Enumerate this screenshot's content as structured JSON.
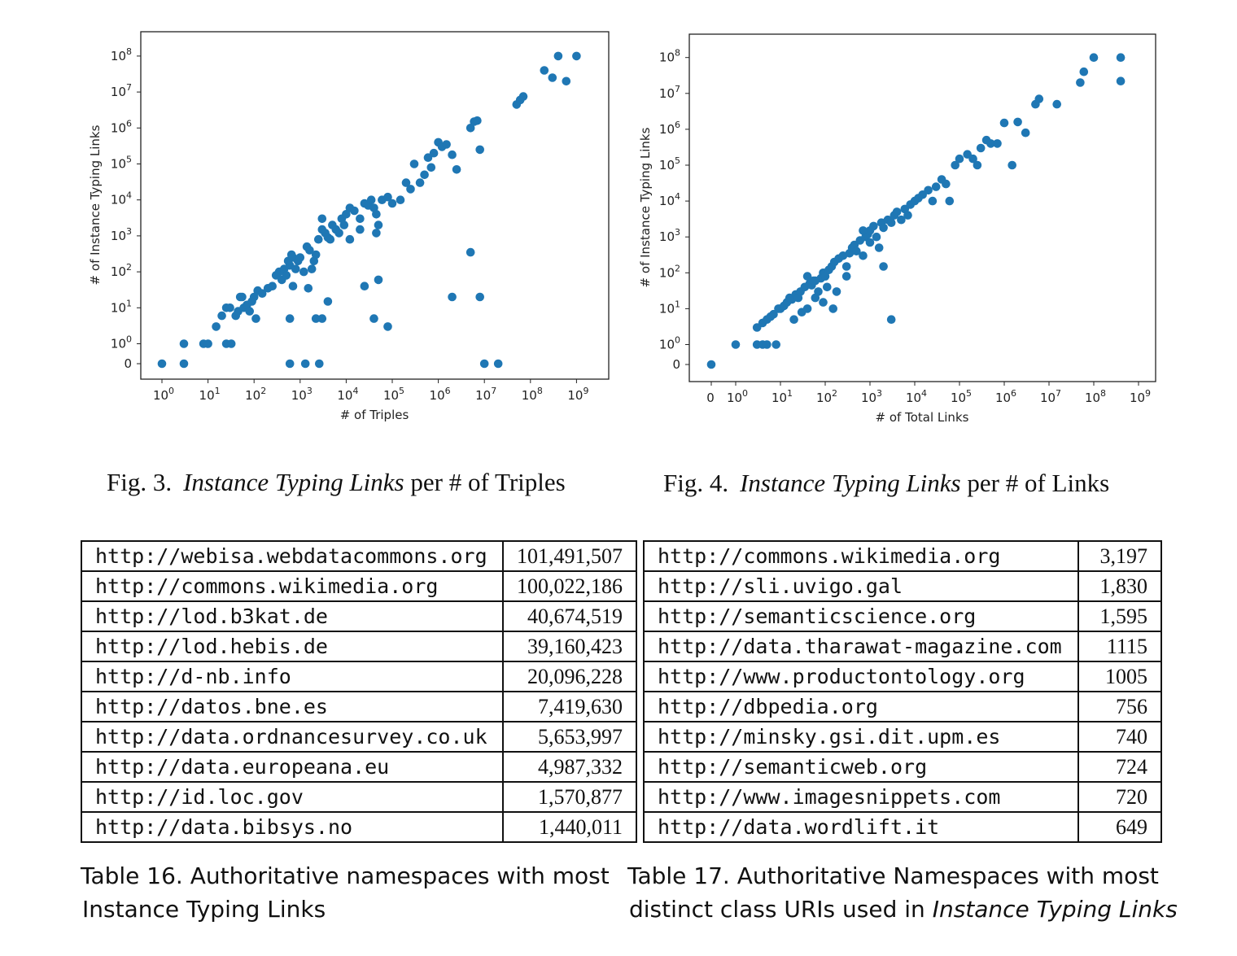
{
  "figures": [
    {
      "number": "Fig. 3.",
      "title_italic": "Instance Typing Links",
      "title_rest": "per # of Triples"
    },
    {
      "number": "Fig. 4.",
      "title_italic": "Instance Typing Links",
      "title_rest": "per # of Links"
    }
  ],
  "chart_data": [
    {
      "type": "scatter",
      "xlabel": "# of Triples",
      "ylabel": "# of Instance Typing Links",
      "xscale": "symlog",
      "yscale": "symlog",
      "x_ticks": [
        "10^0",
        "10^1",
        "10^2",
        "10^3",
        "10^4",
        "10^5",
        "10^6",
        "10^7",
        "10^8",
        "10^9"
      ],
      "y_ticks": [
        "0",
        "10^0",
        "10^1",
        "10^2",
        "10^3",
        "10^4",
        "10^5",
        "10^6",
        "10^7",
        "10^8"
      ],
      "color": "#1f77b4",
      "points": [
        [
          1,
          0
        ],
        [
          3,
          0
        ],
        [
          3,
          1
        ],
        [
          8,
          1
        ],
        [
          10,
          1
        ],
        [
          25,
          1
        ],
        [
          32,
          1
        ],
        [
          600,
          0
        ],
        [
          1300,
          0
        ],
        [
          2600,
          0
        ],
        [
          10000000,
          0
        ],
        [
          20000000,
          0
        ],
        [
          15,
          3
        ],
        [
          20,
          6
        ],
        [
          25,
          10
        ],
        [
          30,
          10
        ],
        [
          40,
          6
        ],
        [
          45,
          8
        ],
        [
          50,
          20
        ],
        [
          55,
          20
        ],
        [
          60,
          10
        ],
        [
          70,
          12
        ],
        [
          80,
          8
        ],
        [
          90,
          15
        ],
        [
          100,
          20
        ],
        [
          110,
          5
        ],
        [
          120,
          30
        ],
        [
          150,
          25
        ],
        [
          200,
          35
        ],
        [
          250,
          40
        ],
        [
          300,
          80
        ],
        [
          350,
          100
        ],
        [
          400,
          60
        ],
        [
          450,
          120
        ],
        [
          500,
          80
        ],
        [
          550,
          200
        ],
        [
          600,
          150
        ],
        [
          650,
          300
        ],
        [
          700,
          250
        ],
        [
          800,
          120
        ],
        [
          900,
          200
        ],
        [
          1000,
          250
        ],
        [
          1200,
          100
        ],
        [
          1400,
          500
        ],
        [
          1600,
          400
        ],
        [
          1800,
          120
        ],
        [
          2000,
          200
        ],
        [
          2200,
          300
        ],
        [
          2500,
          800
        ],
        [
          3000,
          1500
        ],
        [
          3500,
          1200
        ],
        [
          4000,
          900
        ],
        [
          4500,
          800
        ],
        [
          5000,
          2000
        ],
        [
          6000,
          1500
        ],
        [
          7000,
          1200
        ],
        [
          8000,
          3000
        ],
        [
          9000,
          2000
        ],
        [
          10000,
          4000
        ],
        [
          12000,
          6000
        ],
        [
          15000,
          5000
        ],
        [
          20000,
          3000
        ],
        [
          25000,
          8000
        ],
        [
          30000,
          7000
        ],
        [
          35000,
          10000
        ],
        [
          40000,
          6000
        ],
        [
          45000,
          4000
        ],
        [
          50000,
          2000
        ],
        [
          60000,
          10000
        ],
        [
          80000,
          12000
        ],
        [
          100000,
          8000
        ],
        [
          150000,
          10000
        ],
        [
          200000,
          30000
        ],
        [
          250000,
          20000
        ],
        [
          300000,
          100000
        ],
        [
          400000,
          30000
        ],
        [
          500000,
          50000
        ],
        [
          600000,
          150000
        ],
        [
          700000,
          80000
        ],
        [
          800000,
          200000
        ],
        [
          1000000,
          400000
        ],
        [
          1200000,
          300000
        ],
        [
          1500000,
          350000
        ],
        [
          2000000,
          180000
        ],
        [
          2500000,
          70000
        ],
        [
          5000000,
          1000000
        ],
        [
          6000000,
          1500000
        ],
        [
          7000000,
          1600000
        ],
        [
          8000000,
          250000
        ],
        [
          50000000,
          4500000
        ],
        [
          60000000,
          6000000
        ],
        [
          70000000,
          7500000
        ],
        [
          200000000,
          40000000
        ],
        [
          300000000,
          25000000
        ],
        [
          400000000,
          100000000
        ],
        [
          600000000,
          20000000
        ],
        [
          1000000000,
          100000000
        ],
        [
          600,
          5
        ],
        [
          700,
          40
        ],
        [
          1500,
          35
        ],
        [
          2200,
          5
        ],
        [
          3000,
          5
        ],
        [
          4000,
          15
        ],
        [
          12000,
          800
        ],
        [
          25000,
          40
        ],
        [
          40000,
          5
        ],
        [
          50000,
          60
        ],
        [
          80000,
          3
        ],
        [
          5000000,
          350
        ],
        [
          2000000,
          20
        ],
        [
          8000000,
          20
        ],
        [
          3000,
          3000
        ],
        [
          20000,
          1500
        ],
        [
          45000,
          1200
        ]
      ]
    },
    {
      "type": "scatter",
      "xlabel": "# of Total Links",
      "ylabel": "# of Instance Typing Links",
      "xscale": "symlog",
      "yscale": "symlog",
      "x_ticks": [
        "0",
        "10^0",
        "10^1",
        "10^2",
        "10^3",
        "10^4",
        "10^5",
        "10^6",
        "10^7",
        "10^8",
        "10^9"
      ],
      "y_ticks": [
        "0",
        "10^0",
        "10^1",
        "10^2",
        "10^3",
        "10^4",
        "10^5",
        "10^6",
        "10^7",
        "10^8"
      ],
      "color": "#1f77b4",
      "points": [
        [
          0,
          0
        ],
        [
          1,
          1
        ],
        [
          3,
          1
        ],
        [
          4,
          1
        ],
        [
          5,
          1
        ],
        [
          8,
          1
        ],
        [
          3,
          3
        ],
        [
          4,
          4
        ],
        [
          5,
          5
        ],
        [
          6,
          6
        ],
        [
          7,
          7
        ],
        [
          9,
          10
        ],
        [
          10,
          10
        ],
        [
          12,
          12
        ],
        [
          14,
          15
        ],
        [
          16,
          20
        ],
        [
          18,
          18
        ],
        [
          20,
          5
        ],
        [
          22,
          25
        ],
        [
          25,
          20
        ],
        [
          28,
          30
        ],
        [
          30,
          8
        ],
        [
          35,
          40
        ],
        [
          40,
          10
        ],
        [
          45,
          50
        ],
        [
          50,
          45
        ],
        [
          55,
          60
        ],
        [
          60,
          20
        ],
        [
          70,
          30
        ],
        [
          80,
          70
        ],
        [
          90,
          100
        ],
        [
          100,
          80
        ],
        [
          110,
          40
        ],
        [
          120,
          120
        ],
        [
          140,
          150
        ],
        [
          160,
          200
        ],
        [
          180,
          30
        ],
        [
          200,
          250
        ],
        [
          250,
          300
        ],
        [
          300,
          80
        ],
        [
          350,
          350
        ],
        [
          400,
          500
        ],
        [
          450,
          600
        ],
        [
          500,
          400
        ],
        [
          600,
          800
        ],
        [
          700,
          300
        ],
        [
          800,
          1000
        ],
        [
          900,
          1200
        ],
        [
          1000,
          1500
        ],
        [
          1200,
          2000
        ],
        [
          1400,
          1000
        ],
        [
          1600,
          500
        ],
        [
          1800,
          2500
        ],
        [
          2000,
          150
        ],
        [
          2500,
          3000
        ],
        [
          3000,
          2500
        ],
        [
          3500,
          4000
        ],
        [
          4000,
          5000
        ],
        [
          5000,
          3000
        ],
        [
          6000,
          6000
        ],
        [
          7000,
          4000
        ],
        [
          8000,
          8000
        ],
        [
          10000,
          10000
        ],
        [
          12000,
          12000
        ],
        [
          15000,
          15000
        ],
        [
          20000,
          20000
        ],
        [
          25000,
          10000
        ],
        [
          30000,
          25000
        ],
        [
          40000,
          40000
        ],
        [
          50000,
          30000
        ],
        [
          60000,
          10000
        ],
        [
          80000,
          100000
        ],
        [
          100000,
          150000
        ],
        [
          150000,
          200000
        ],
        [
          200000,
          150000
        ],
        [
          250000,
          100000
        ],
        [
          300000,
          300000
        ],
        [
          400000,
          500000
        ],
        [
          500000,
          400000
        ],
        [
          700000,
          400000
        ],
        [
          1000000,
          1500000
        ],
        [
          1500000,
          100000
        ],
        [
          2000000,
          1600000
        ],
        [
          3000000,
          800000
        ],
        [
          5000000,
          5000000
        ],
        [
          6000000,
          7000000
        ],
        [
          15000000,
          5000000
        ],
        [
          50000000,
          20000000
        ],
        [
          60000000,
          40000000
        ],
        [
          100000000,
          100000000
        ],
        [
          400000000,
          100000000
        ],
        [
          400000000,
          22000000
        ],
        [
          3000,
          5
        ],
        [
          40,
          80
        ],
        [
          60,
          60
        ],
        [
          90,
          15
        ],
        [
          150,
          10
        ],
        [
          300,
          150
        ],
        [
          1000,
          700
        ],
        [
          700,
          1500
        ],
        [
          2000,
          1800
        ]
      ]
    }
  ],
  "table16": {
    "caption_line1": "Table 16.  Authoritative namespaces with most",
    "caption_line2": "Instance Typing Links",
    "rows": [
      [
        "http://webisa.webdatacommons.org",
        "101,491,507"
      ],
      [
        "http://commons.wikimedia.org",
        "100,022,186"
      ],
      [
        "http://lod.b3kat.de",
        "40,674,519"
      ],
      [
        "http://lod.hebis.de",
        "39,160,423"
      ],
      [
        "http://d-nb.info",
        "20,096,228"
      ],
      [
        "http://datos.bne.es",
        "7,419,630"
      ],
      [
        "http://data.ordnancesurvey.co.uk",
        "5,653,997"
      ],
      [
        "http://data.europeana.eu",
        "4,987,332"
      ],
      [
        "http://id.loc.gov",
        "1,570,877"
      ],
      [
        "http://data.bibsys.no",
        "1,440,011"
      ]
    ]
  },
  "table17": {
    "caption_line1": "Table 17.  Authoritative Namespaces with most",
    "caption_line2_plain": "distinct class URIs used in ",
    "caption_line2_italic": "Instance Typing Links",
    "rows": [
      [
        "http://commons.wikimedia.org",
        "3,197"
      ],
      [
        "http://sli.uvigo.gal",
        "1,830"
      ],
      [
        "http://semanticscience.org",
        "1,595"
      ],
      [
        "http://data.tharawat-magazine.com",
        "1115"
      ],
      [
        "http://www.productontology.org",
        "1005"
      ],
      [
        "http://dbpedia.org",
        "756"
      ],
      [
        "http://minsky.gsi.dit.upm.es",
        "740"
      ],
      [
        "http://semanticweb.org",
        "724"
      ],
      [
        "http://www.imagesnippets.com",
        "720"
      ],
      [
        "http://data.wordlift.it",
        "649"
      ]
    ]
  }
}
